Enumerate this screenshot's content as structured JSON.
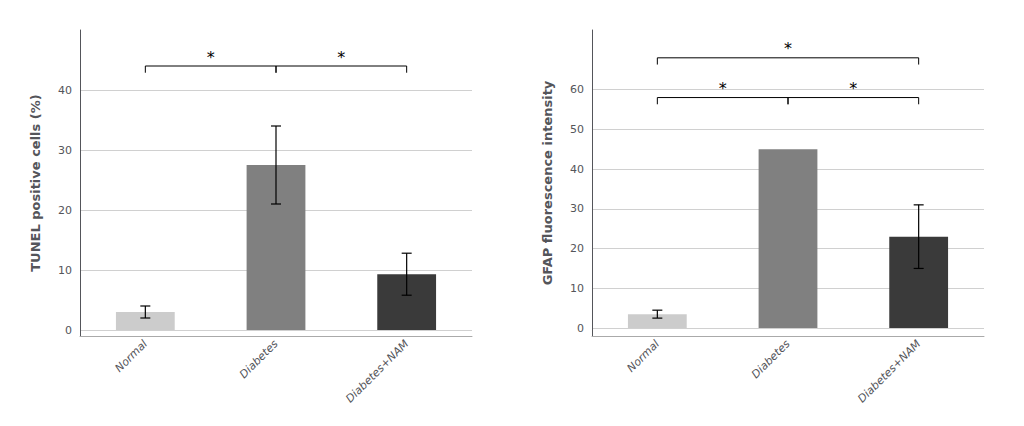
{
  "chart_data": [
    {
      "type": "bar",
      "categories": [
        "Normal",
        "Diabetes",
        "Diabetes+NAM"
      ],
      "values": [
        3.0,
        27.5,
        9.3
      ],
      "errors": [
        1.0,
        6.5,
        3.5
      ],
      "colors": [
        "#cccccc",
        "#808080",
        "#3a3a3a"
      ],
      "ylabel": "TUNEL positive cells (%)",
      "ylim": [
        -1,
        50
      ],
      "yticks": [
        0,
        10,
        20,
        30,
        40
      ],
      "grid": true,
      "annotations": [
        {
          "from": "Normal",
          "to": "Diabetes",
          "y": 44,
          "text": "*"
        },
        {
          "from": "Diabetes",
          "to": "Diabetes+NAM",
          "y": 44,
          "text": "*"
        }
      ]
    },
    {
      "type": "bar",
      "categories": [
        "Normal",
        "Diabetes",
        "Diabetes+NAM"
      ],
      "values": [
        3.5,
        45.0,
        23.0
      ],
      "errors": [
        1.0,
        0,
        8.0
      ],
      "colors": [
        "#cccccc",
        "#808080",
        "#3a3a3a"
      ],
      "ylabel": "GFAP fluorescence intensity",
      "ylim": [
        -2,
        75
      ],
      "yticks": [
        0,
        10,
        20,
        30,
        40,
        50,
        60
      ],
      "grid": true,
      "annotations": [
        {
          "from": "Normal",
          "to": "Diabetes",
          "y": 58,
          "text": "*"
        },
        {
          "from": "Diabetes",
          "to": "Diabetes+NAM",
          "y": 58,
          "text": "*"
        },
        {
          "from": "Normal",
          "to": "Diabetes+NAM",
          "y": 68,
          "text": "*"
        }
      ]
    }
  ]
}
